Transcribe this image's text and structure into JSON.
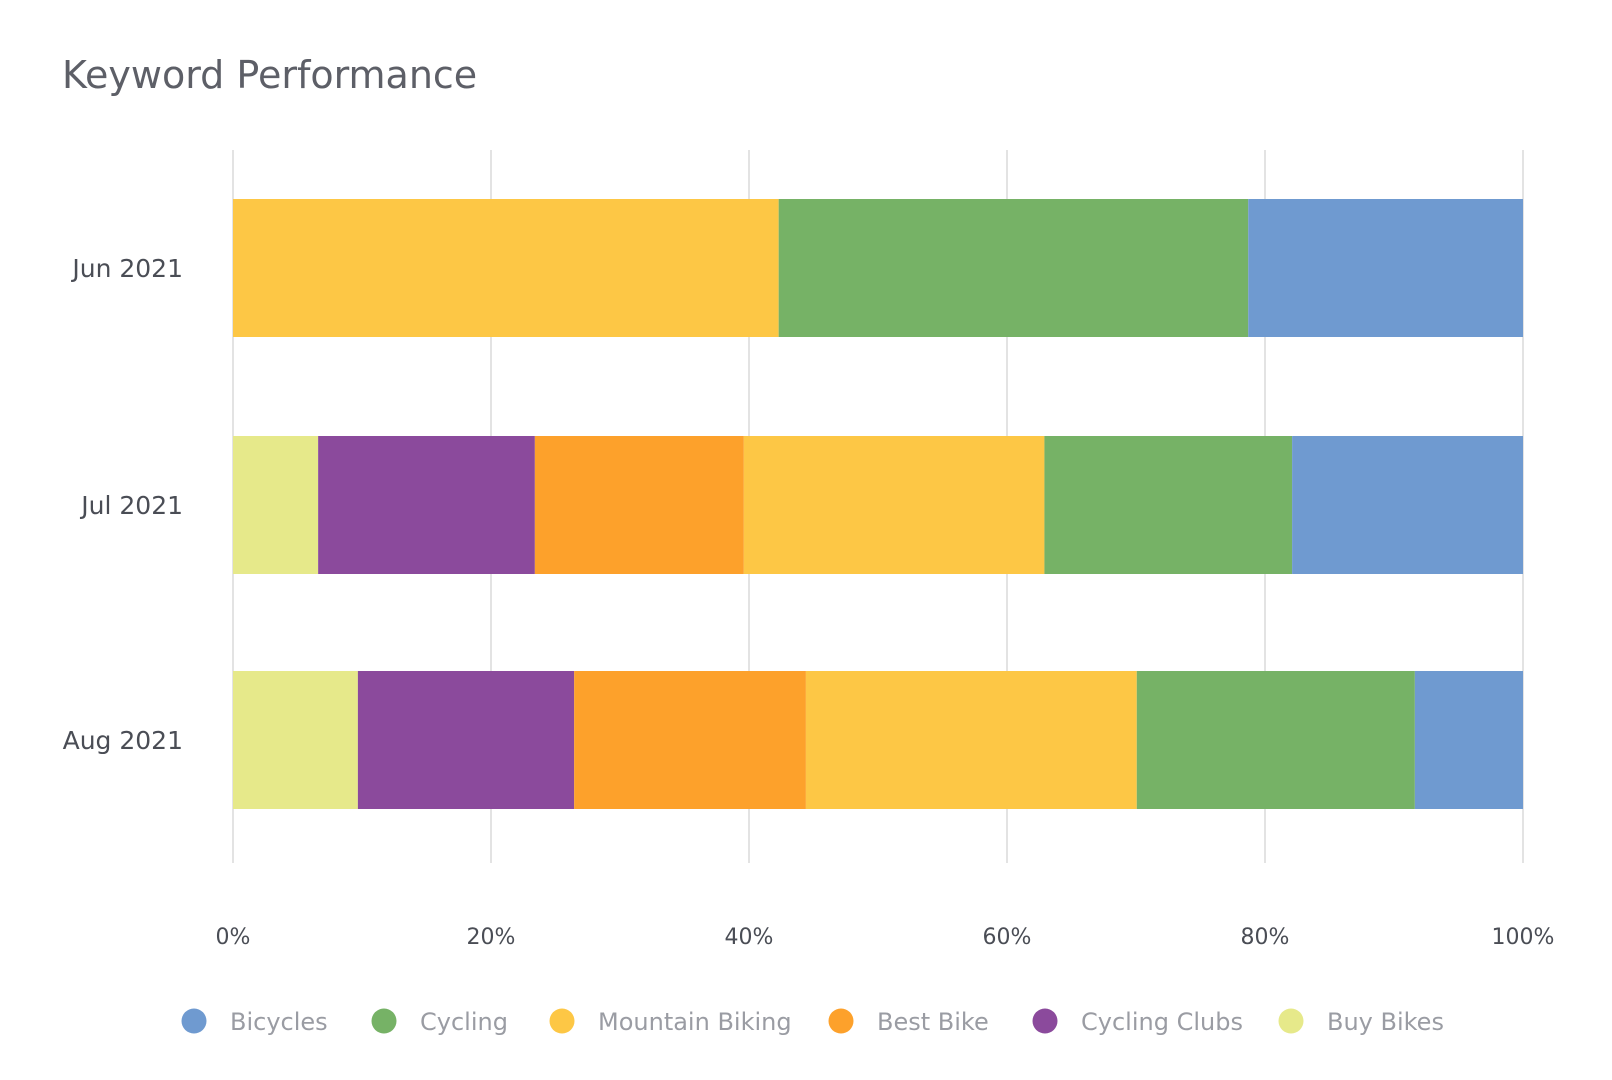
{
  "chart_data": {
    "type": "bar",
    "orientation": "horizontal",
    "stacked": "percent",
    "title": "Keyword Performance",
    "xlabel": "",
    "ylabel": "",
    "xlim": [
      0,
      100
    ],
    "x_ticks": [
      "0%",
      "20%",
      "40%",
      "60%",
      "80%",
      "100%"
    ],
    "grid": true,
    "legend_position": "bottom",
    "categories": [
      "Jun 2021",
      "Jul 2021",
      "Aug 2021"
    ],
    "series": [
      {
        "name": "Buy Bikes",
        "color": "#e6e98a",
        "values": [
          0,
          6.6,
          9.7
        ]
      },
      {
        "name": "Cycling Clubs",
        "color": "#8b4a9c",
        "values": [
          0,
          16.8,
          16.8
        ]
      },
      {
        "name": "Best Bike",
        "color": "#fda12b",
        "values": [
          0,
          16.2,
          18.0
        ]
      },
      {
        "name": "Mountain Biking",
        "color": "#fdc745",
        "values": [
          42.3,
          23.3,
          25.7
        ]
      },
      {
        "name": "Cycling",
        "color": "#76b266",
        "values": [
          36.4,
          19.2,
          21.6
        ]
      },
      {
        "name": "Bicycles",
        "color": "#6f9ad0",
        "values": [
          21.3,
          17.9,
          8.4
        ]
      }
    ],
    "legend_order": [
      "Bicycles",
      "Cycling",
      "Mountain Biking",
      "Best Bike",
      "Cycling Clubs",
      "Buy Bikes"
    ]
  }
}
